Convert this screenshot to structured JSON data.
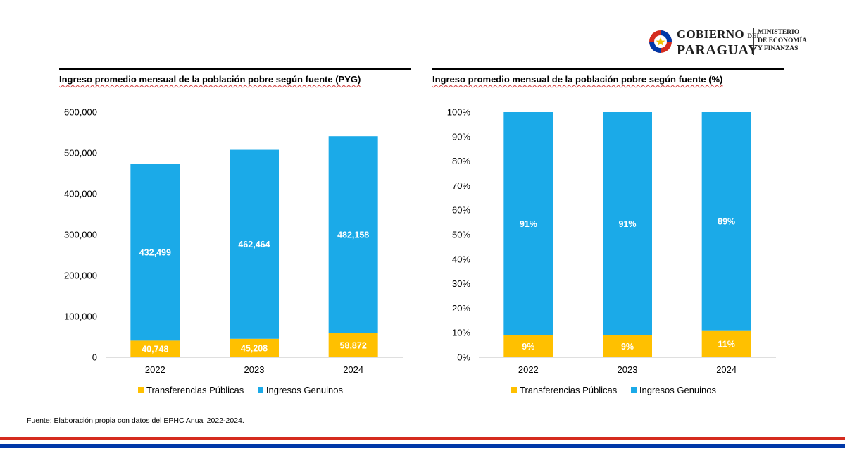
{
  "header": {
    "logo_line1": "GOBIERNO",
    "logo_del": "DEL",
    "logo_line2": "PARAGUAY",
    "ministry_line1": "MINISTERIO",
    "ministry_line2": "DE ECONOMÍA",
    "ministry_line3": "Y FINANZAS"
  },
  "colors": {
    "transferencias": "#FFC000",
    "genuinos": "#1BAAE8",
    "flag_red": "#D52B1E",
    "flag_blue": "#0038A8"
  },
  "chart_data": [
    {
      "type": "bar",
      "stacked": true,
      "title": "Ingreso promedio mensual de la población pobre según fuente (PYG)",
      "categories": [
        "2022",
        "2023",
        "2024"
      ],
      "series": [
        {
          "name": "Transferencias Públicas",
          "values": [
            40748,
            45208,
            58872
          ],
          "labels": [
            "40,748",
            "45,208",
            "58,872"
          ]
        },
        {
          "name": "Ingresos Genuinos",
          "values": [
            432499,
            462464,
            482158
          ],
          "labels": [
            "432,499",
            "462,464",
            "482,158"
          ]
        }
      ],
      "ylim": [
        0,
        600000
      ],
      "yticks": [
        0,
        100000,
        200000,
        300000,
        400000,
        500000,
        600000
      ],
      "ytick_labels": [
        "0",
        "100,000",
        "200,000",
        "300,000",
        "400,000",
        "500,000",
        "600,000"
      ],
      "xlabel": "",
      "ylabel": "",
      "grid": false,
      "legend": "bottom"
    },
    {
      "type": "bar",
      "stacked": true,
      "title": "Ingreso promedio mensual de la población pobre según fuente (%)",
      "categories": [
        "2022",
        "2023",
        "2024"
      ],
      "series": [
        {
          "name": "Transferencias Públicas",
          "values": [
            9,
            9,
            11
          ],
          "labels": [
            "9%",
            "9%",
            "11%"
          ]
        },
        {
          "name": "Ingresos Genuinos",
          "values": [
            91,
            91,
            89
          ],
          "labels": [
            "91%",
            "91%",
            "89%"
          ]
        }
      ],
      "ylim": [
        0,
        100
      ],
      "yticks": [
        0,
        10,
        20,
        30,
        40,
        50,
        60,
        70,
        80,
        90,
        100
      ],
      "ytick_labels": [
        "0%",
        "10%",
        "20%",
        "30%",
        "40%",
        "50%",
        "60%",
        "70%",
        "80%",
        "90%",
        "100%"
      ],
      "xlabel": "",
      "ylabel": "",
      "grid": false,
      "legend": "bottom"
    }
  ],
  "footer": {
    "source": "Fuente: Elaboración propia con datos del EPHC Anual 2022-2024."
  }
}
